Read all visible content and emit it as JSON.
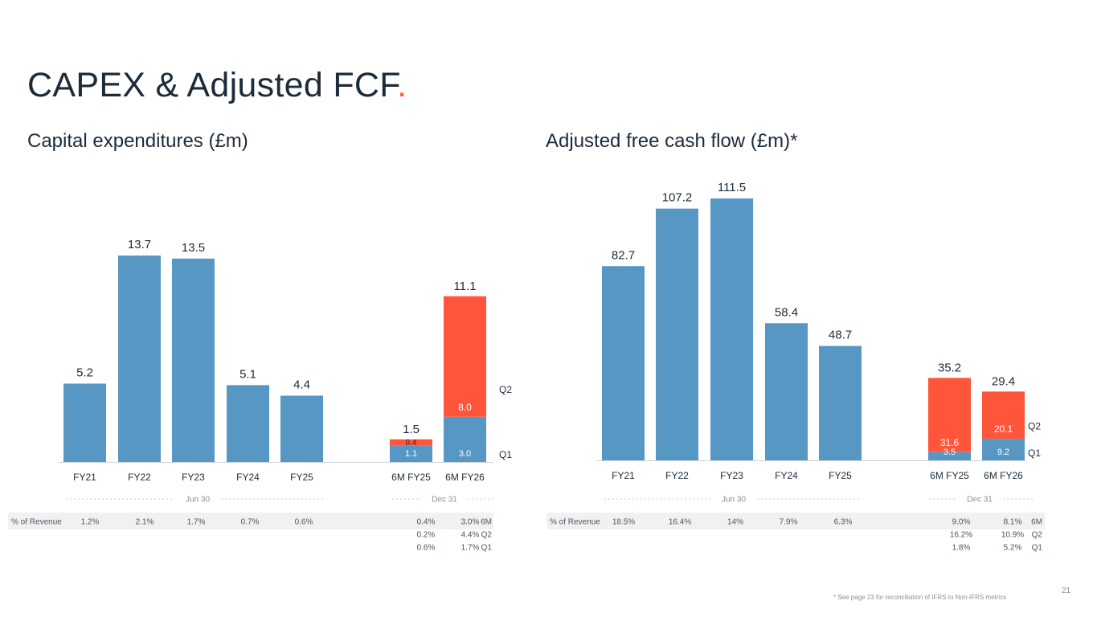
{
  "page": {
    "title": "CAPEX & Adjusted FCF",
    "title_dot": ".",
    "footnote": "* See page 23 for reconciliation of IFRS to Non-IFRS metrics",
    "page_number": "21"
  },
  "colors": {
    "blue": "#5797c3",
    "red": "#ff553b",
    "text": "#1c2b39",
    "muted": "#8a9096",
    "row_bg": "#f1f1f1"
  },
  "chart_data": [
    {
      "id": "capex",
      "type": "bar",
      "title": "Capital expenditures (£m)",
      "ylim": [
        0,
        16
      ],
      "categories": [
        "FY21",
        "FY22",
        "FY23",
        "FY24",
        "FY25"
      ],
      "values": [
        5.2,
        13.7,
        13.5,
        5.1,
        4.4
      ],
      "value_labels": [
        "5.2",
        "13.7",
        "13.5",
        "5.1",
        "4.4"
      ],
      "period_label_left": "Jun 30",
      "stacked": {
        "categories": [
          "6M FY25",
          "6M FY26"
        ],
        "totals": [
          1.5,
          11.1
        ],
        "total_labels": [
          "1.5",
          "11.1"
        ],
        "series": [
          {
            "name": "Q1",
            "values": [
              1.1,
              3.0
            ],
            "labels": [
              "1.1",
              "3.0"
            ]
          },
          {
            "name": "Q2",
            "values": [
              0.4,
              8.0
            ],
            "labels": [
              "0.4",
              "8.0"
            ]
          }
        ]
      },
      "period_label_right": "Dec 31",
      "legend": {
        "q2": "Q2",
        "q1": "Q1"
      },
      "revenue": {
        "label": "% of Revenue",
        "annual": [
          "1.2%",
          "2.1%",
          "1.7%",
          "0.7%",
          "0.6%"
        ],
        "half_6m": [
          "0.4%",
          "3.0%"
        ],
        "half_q2": [
          "0.2%",
          "4.4%"
        ],
        "half_q1": [
          "0.6%",
          "1.7%"
        ],
        "row_labels": [
          "6M",
          "Q2",
          "Q1"
        ]
      }
    },
    {
      "id": "fcf",
      "type": "bar",
      "title": "Adjusted free cash flow (£m)*",
      "ylim": [
        0,
        130
      ],
      "categories": [
        "FY21",
        "FY22",
        "FY23",
        "FY24",
        "FY25"
      ],
      "values": [
        82.7,
        107.2,
        111.5,
        58.4,
        48.7
      ],
      "value_labels": [
        "82.7",
        "107.2",
        "111.5",
        "58.4",
        "48.7"
      ],
      "period_label_left": "Jun 30",
      "stacked": {
        "categories": [
          "6M FY25",
          "6M FY26"
        ],
        "totals": [
          35.2,
          29.4
        ],
        "total_labels": [
          "35.2",
          "29.4"
        ],
        "series": [
          {
            "name": "Q1",
            "values": [
              3.5,
              9.2
            ],
            "labels": [
              "3.5",
              "9.2"
            ]
          },
          {
            "name": "Q2",
            "values": [
              31.6,
              20.1
            ],
            "labels": [
              "31.6",
              "20.1"
            ]
          }
        ]
      },
      "period_label_right": "Dec 31",
      "legend": {
        "q2": "Q2",
        "q1": "Q1"
      },
      "revenue": {
        "label": "% of Revenue",
        "annual": [
          "18.5%",
          "16.4%",
          "14%",
          "7.9%",
          "6.3%"
        ],
        "half_6m": [
          "9.0%",
          "8.1%"
        ],
        "half_q2": [
          "16.2%",
          "10.9%"
        ],
        "half_q1": [
          "1.8%",
          "5.2%"
        ],
        "row_labels": [
          "6M",
          "Q2",
          "Q1"
        ]
      }
    }
  ]
}
